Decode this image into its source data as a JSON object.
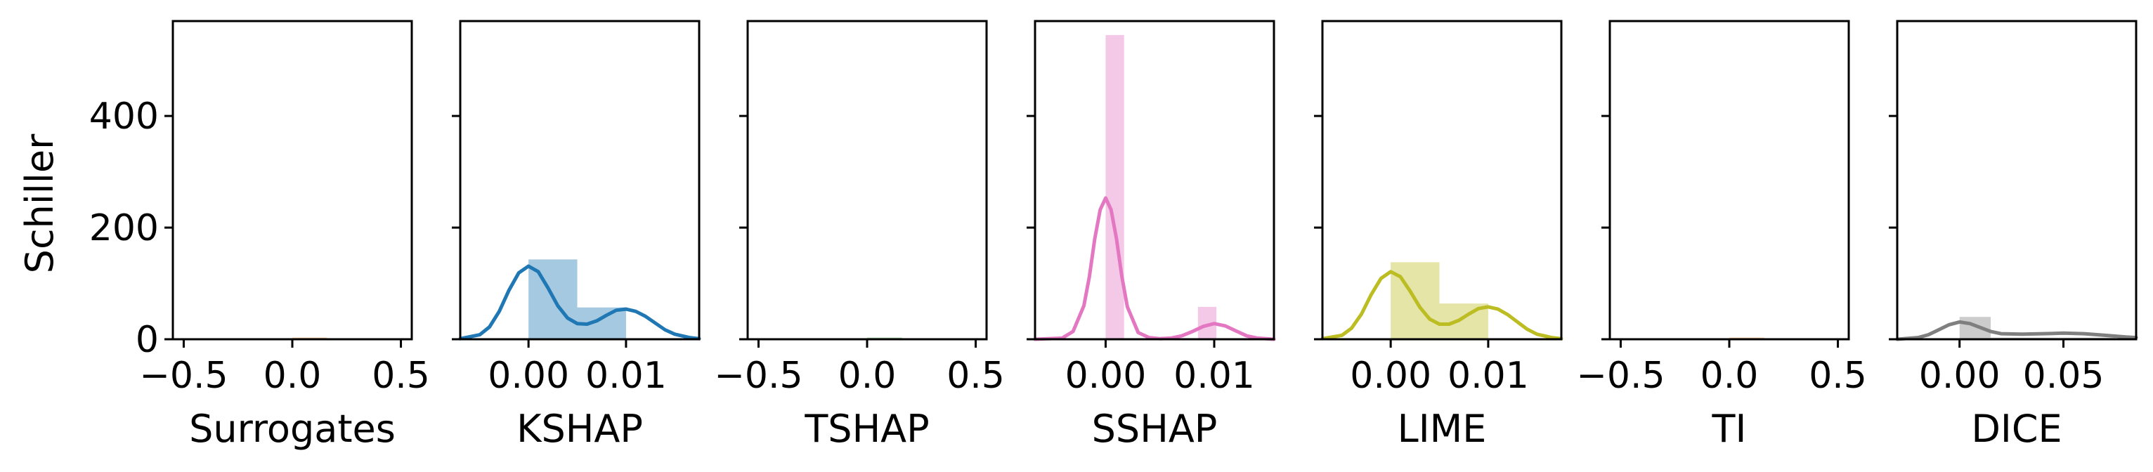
{
  "chart_data": {
    "type": "histogram+kde",
    "ylabel": "Schiller",
    "ylim": [
      0,
      570
    ],
    "yticks": [
      0,
      200,
      400
    ],
    "ytick_labels": [
      "0",
      "200",
      "400"
    ],
    "panels": [
      {
        "xlabel": "Surrogates",
        "color": "#ff7f0e",
        "xlim": [
          -0.55,
          0.55
        ],
        "xticks": [
          -0.5,
          0.0,
          0.5
        ],
        "xtick_labels": [
          "−0.5",
          "0.0",
          "0.5"
        ],
        "bins": [
          {
            "x0": 0.0,
            "x1": 0.16,
            "value": 3
          }
        ],
        "kde": []
      },
      {
        "xlabel": "KSHAP",
        "color": "#1f77b4",
        "xlim": [
          -0.007,
          0.0175
        ],
        "xticks": [
          0.0,
          0.01
        ],
        "xtick_labels": [
          "0.00",
          "0.01"
        ],
        "bins": [
          {
            "x0": 0.0,
            "x1": 0.005,
            "value": 143
          },
          {
            "x0": 0.005,
            "x1": 0.01,
            "value": 57
          }
        ],
        "kde": [
          [
            -0.007,
            1
          ],
          [
            -0.005,
            8
          ],
          [
            -0.004,
            22
          ],
          [
            -0.003,
            50
          ],
          [
            -0.002,
            88
          ],
          [
            -0.001,
            119
          ],
          [
            0.0,
            131
          ],
          [
            0.001,
            121
          ],
          [
            0.002,
            92
          ],
          [
            0.003,
            60
          ],
          [
            0.004,
            38
          ],
          [
            0.005,
            28
          ],
          [
            0.006,
            27
          ],
          [
            0.007,
            33
          ],
          [
            0.008,
            43
          ],
          [
            0.009,
            52
          ],
          [
            0.01,
            54
          ],
          [
            0.011,
            50
          ],
          [
            0.012,
            41
          ],
          [
            0.013,
            29
          ],
          [
            0.014,
            17
          ],
          [
            0.015,
            9
          ],
          [
            0.0165,
            3
          ],
          [
            0.0175,
            1
          ]
        ]
      },
      {
        "xlabel": "TSHAP",
        "color": "#2ca02c",
        "xlim": [
          -0.55,
          0.55
        ],
        "xticks": [
          -0.5,
          0.0,
          0.5
        ],
        "xtick_labels": [
          "−0.5",
          "0.0",
          "0.5"
        ],
        "bins": [
          {
            "x0": 0.0,
            "x1": 0.16,
            "value": 3
          }
        ],
        "kde": []
      },
      {
        "xlabel": "SSHAP",
        "color": "#e377c2",
        "xlim": [
          -0.0065,
          0.0155
        ],
        "xticks": [
          0.0,
          0.01
        ],
        "xtick_labels": [
          "0.00",
          "0.01"
        ],
        "bins": [
          {
            "x0": 0.0,
            "x1": 0.0017,
            "value": 545
          },
          {
            "x0": 0.0085,
            "x1": 0.0102,
            "value": 58
          }
        ],
        "kde": [
          [
            -0.0065,
            0
          ],
          [
            -0.004,
            2
          ],
          [
            -0.003,
            14
          ],
          [
            -0.002,
            60
          ],
          [
            -0.0015,
            112
          ],
          [
            -0.001,
            180
          ],
          [
            -0.0005,
            232
          ],
          [
            0.0,
            253
          ],
          [
            0.0005,
            232
          ],
          [
            0.001,
            180
          ],
          [
            0.0015,
            112
          ],
          [
            0.002,
            58
          ],
          [
            0.003,
            12
          ],
          [
            0.004,
            3
          ],
          [
            0.005,
            1
          ],
          [
            0.006,
            2
          ],
          [
            0.007,
            6
          ],
          [
            0.008,
            14
          ],
          [
            0.009,
            23
          ],
          [
            0.01,
            28
          ],
          [
            0.011,
            24
          ],
          [
            0.012,
            15
          ],
          [
            0.013,
            6
          ],
          [
            0.014,
            2
          ],
          [
            0.0155,
            0
          ]
        ]
      },
      {
        "xlabel": "LIME",
        "color": "#bcbd22",
        "xlim": [
          -0.007,
          0.0175
        ],
        "xticks": [
          0.0,
          0.01
        ],
        "xtick_labels": [
          "0.00",
          "0.01"
        ],
        "bins": [
          {
            "x0": 0.0,
            "x1": 0.005,
            "value": 138
          },
          {
            "x0": 0.005,
            "x1": 0.01,
            "value": 64
          }
        ],
        "kde": [
          [
            -0.007,
            1
          ],
          [
            -0.005,
            7
          ],
          [
            -0.004,
            20
          ],
          [
            -0.003,
            45
          ],
          [
            -0.002,
            80
          ],
          [
            -0.001,
            109
          ],
          [
            0.0,
            121
          ],
          [
            0.001,
            112
          ],
          [
            0.002,
            86
          ],
          [
            0.003,
            57
          ],
          [
            0.004,
            36
          ],
          [
            0.005,
            27
          ],
          [
            0.006,
            27
          ],
          [
            0.007,
            34
          ],
          [
            0.008,
            45
          ],
          [
            0.009,
            55
          ],
          [
            0.01,
            58
          ],
          [
            0.011,
            54
          ],
          [
            0.012,
            44
          ],
          [
            0.013,
            31
          ],
          [
            0.014,
            18
          ],
          [
            0.015,
            9
          ],
          [
            0.0165,
            3
          ],
          [
            0.0175,
            1
          ]
        ]
      },
      {
        "xlabel": "TI",
        "color": "#ff7f0e",
        "xlim": [
          -0.55,
          0.55
        ],
        "xticks": [
          -0.5,
          0.0,
          0.5
        ],
        "xtick_labels": [
          "−0.5",
          "0.0",
          "0.5"
        ],
        "bins": [
          {
            "x0": 0.0,
            "x1": 0.16,
            "value": 3
          }
        ],
        "kde": []
      },
      {
        "xlabel": "DICE",
        "color": "#7f7f7f",
        "xlim": [
          -0.03,
          0.085
        ],
        "xticks": [
          0.0,
          0.05
        ],
        "xtick_labels": [
          "0.00",
          "0.05"
        ],
        "bins": [
          {
            "x0": 0.0,
            "x1": 0.015,
            "value": 40
          },
          {
            "x0": 0.015,
            "x1": 0.075,
            "value": 3
          }
        ],
        "kde": [
          [
            -0.03,
            0
          ],
          [
            -0.02,
            3
          ],
          [
            -0.015,
            8
          ],
          [
            -0.01,
            17
          ],
          [
            -0.005,
            26
          ],
          [
            0.0,
            31
          ],
          [
            0.005,
            28
          ],
          [
            0.01,
            21
          ],
          [
            0.015,
            14
          ],
          [
            0.02,
            10
          ],
          [
            0.03,
            9
          ],
          [
            0.04,
            10
          ],
          [
            0.05,
            11
          ],
          [
            0.06,
            10
          ],
          [
            0.07,
            7
          ],
          [
            0.08,
            4
          ],
          [
            0.085,
            3
          ]
        ]
      }
    ]
  }
}
